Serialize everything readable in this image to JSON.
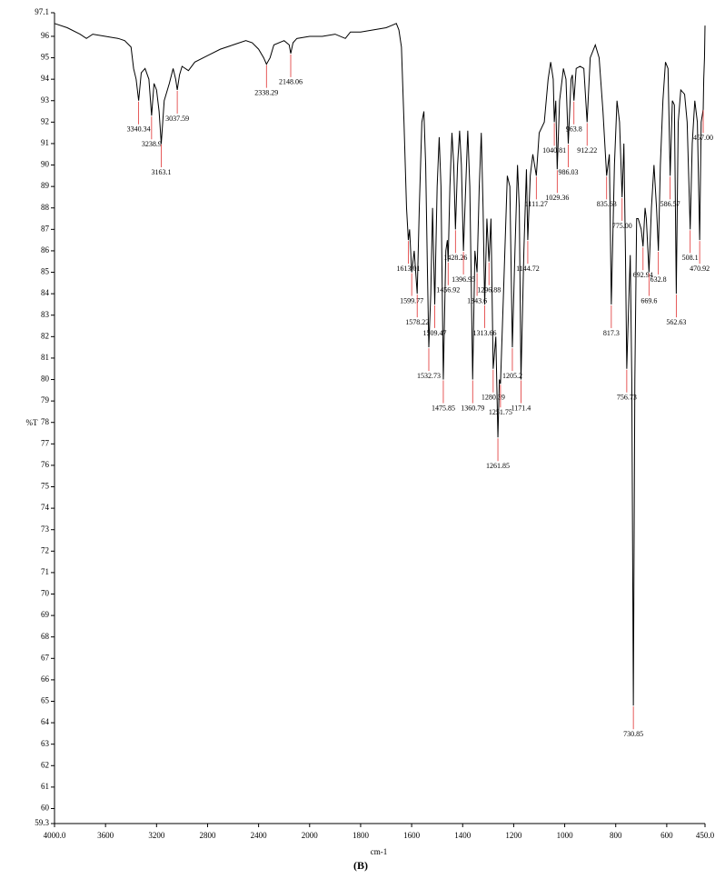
{
  "chart_data": {
    "type": "line",
    "y_label": "%T",
    "x_label": "cm-1",
    "caption": "(B)",
    "xlim": [
      4000,
      450
    ],
    "x_scale_break": 2000,
    "xticks": [
      {
        "value": 4000,
        "label": "4000.0"
      },
      3600,
      3200,
      2800,
      2400,
      2000,
      1800,
      1600,
      1400,
      1200,
      1000,
      800,
      600,
      {
        "value": 450,
        "label": "450.0"
      }
    ],
    "ylim": [
      59.3,
      97.1
    ],
    "yticks": [
      59.3,
      60,
      61,
      62,
      63,
      64,
      65,
      66,
      67,
      68,
      69,
      70,
      71,
      72,
      73,
      74,
      75,
      76,
      77,
      78,
      79,
      80,
      81,
      82,
      83,
      84,
      85,
      86,
      87,
      88,
      89,
      90,
      91,
      92,
      93,
      94,
      95,
      96,
      97.1
    ],
    "series": [
      {
        "color": "#000000",
        "x": [
          4000,
          3900,
          3800,
          3750,
          3700,
          3600,
          3500,
          3450,
          3400,
          3380,
          3360,
          3340.34,
          3320,
          3290,
          3260,
          3238.9,
          3220,
          3200,
          3180,
          3163.1,
          3140,
          3100,
          3070,
          3050,
          3037.59,
          3020,
          3000,
          2950,
          2900,
          2800,
          2700,
          2600,
          2500,
          2450,
          2400,
          2360,
          2338.29,
          2310,
          2280,
          2200,
          2160,
          2148.06,
          2130,
          2100,
          2000,
          1950,
          1900,
          1860,
          1840,
          1800,
          1750,
          1700,
          1680,
          1660,
          1650,
          1640,
          1630,
          1620,
          1613.01,
          1608,
          1599.77,
          1590,
          1578.22,
          1570,
          1560,
          1552,
          1545,
          1538,
          1532.73,
          1525,
          1518,
          1509.47,
          1500,
          1492,
          1485,
          1475.85,
          1466,
          1460,
          1456.92,
          1450,
          1442,
          1435,
          1428.26,
          1420,
          1412,
          1405,
          1396.95,
          1388,
          1380,
          1372,
          1360.79,
          1352,
          1343.6,
          1335,
          1327,
          1320,
          1313.66,
          1305,
          1296.88,
          1289,
          1280.39,
          1270,
          1261.85,
          1256,
          1251.75,
          1240,
          1225,
          1215,
          1205.2,
          1195,
          1185,
          1178,
          1171.4,
          1160,
          1150,
          1144.72,
          1135,
          1125,
          1111.27,
          1100,
          1080,
          1065,
          1055,
          1045,
          1040.81,
          1035,
          1029.36,
          1020,
          1005,
          995,
          986.03,
          975,
          970,
          963.8,
          955,
          940,
          925,
          912.22,
          900,
          880,
          865,
          850,
          835.63,
          825,
          817.3,
          805,
          795,
          785,
          775,
          768,
          762,
          756.73,
          748,
          743,
          737,
          730.85,
          725,
          718,
          712,
          700,
          692.94,
          685,
          680,
          669.6,
          660,
          650,
          640,
          632.8,
          625,
          615,
          605,
          595,
          586.57,
          578,
          570,
          562.63,
          555,
          545,
          530,
          520,
          508.1,
          500,
          490,
          480,
          470.92,
          465,
          457,
          455,
          452,
          450
        ],
        "values": [
          96.6,
          96.4,
          96.1,
          95.9,
          96.1,
          96.0,
          95.9,
          95.8,
          95.5,
          94.5,
          94.0,
          93.0,
          94.3,
          94.5,
          94.0,
          92.3,
          93.8,
          93.5,
          92.5,
          91.0,
          93.0,
          93.8,
          94.5,
          94.0,
          93.5,
          94.2,
          94.6,
          94.4,
          94.8,
          95.1,
          95.4,
          95.6,
          95.8,
          95.7,
          95.4,
          95.0,
          94.7,
          95.0,
          95.6,
          95.8,
          95.6,
          95.2,
          95.7,
          95.9,
          96.0,
          96.0,
          96.1,
          95.9,
          96.2,
          96.2,
          96.3,
          96.4,
          96.5,
          96.6,
          96.3,
          95.5,
          92,
          88,
          86.5,
          87.0,
          85.0,
          86,
          84.0,
          88,
          92.0,
          92.5,
          90,
          85,
          81.5,
          84,
          88,
          83.5,
          89,
          91.3,
          89,
          80.0,
          86,
          86.5,
          85.5,
          89,
          91.5,
          90,
          87.0,
          90,
          91.6,
          90,
          86.0,
          89,
          91.6,
          89,
          80.0,
          86,
          85.0,
          89,
          91.5,
          88,
          83.5,
          87.5,
          85.5,
          87.5,
          80.5,
          82,
          77.3,
          80,
          79.8,
          84,
          89.5,
          89.0,
          81.5,
          86,
          90.0,
          88,
          80.0,
          86,
          89.8,
          86.5,
          89.5,
          90.5,
          89.5,
          91.5,
          92.0,
          94.0,
          94.8,
          94.0,
          92.0,
          93,
          89.8,
          93,
          94.5,
          94,
          91.0,
          94,
          94.2,
          93.0,
          94.5,
          94.6,
          94.5,
          92.0,
          95.0,
          95.6,
          95.0,
          92.5,
          89.5,
          90.5,
          83.5,
          90,
          93.0,
          92,
          88.5,
          91,
          86,
          80.5,
          84,
          85.8,
          80,
          64.8,
          80,
          87.5,
          87.5,
          87.0,
          86.2,
          88.0,
          87.5,
          85.0,
          88,
          90,
          88,
          86.0,
          90,
          93,
          94.8,
          94.5,
          89.5,
          93,
          92.8,
          84.0,
          92,
          93.5,
          93.3,
          92,
          87.0,
          91,
          93,
          92,
          86.5,
          92,
          92.6,
          94,
          95,
          96.5
        ]
      }
    ],
    "annotations": [
      {
        "x": 3340.34,
        "y": 93.0
      },
      {
        "x": 3238.9,
        "y": 92.3
      },
      {
        "x": 3163.1,
        "y": 91.0
      },
      {
        "x": 3037.59,
        "y": 93.5
      },
      {
        "x": 2338.29,
        "y": 94.7
      },
      {
        "x": 2148.06,
        "y": 95.2
      },
      {
        "x": 1613.01,
        "y": 86.5
      },
      {
        "x": 1599.77,
        "y": 85.0
      },
      {
        "x": 1578.22,
        "y": 84.0
      },
      {
        "x": 1532.73,
        "y": 81.5
      },
      {
        "x": 1509.47,
        "y": 83.5
      },
      {
        "x": 1475.85,
        "y": 80.0
      },
      {
        "x": 1456.92,
        "y": 85.5
      },
      {
        "x": 1428.26,
        "y": 87.0
      },
      {
        "x": 1396.95,
        "y": 86.0
      },
      {
        "x": 1360.79,
        "y": 80.0
      },
      {
        "x": 1343.6,
        "y": 85.0
      },
      {
        "x": 1313.66,
        "y": 83.5
      },
      {
        "x": 1296.88,
        "y": 85.5
      },
      {
        "x": 1280.39,
        "y": 80.5
      },
      {
        "x": 1261.85,
        "y": 77.3
      },
      {
        "x": 1251.75,
        "y": 79.8
      },
      {
        "x": 1205.2,
        "y": 81.5
      },
      {
        "x": 1171.4,
        "y": 80.0
      },
      {
        "x": 1144.72,
        "y": 86.5
      },
      {
        "x": 1111.27,
        "y": 89.5
      },
      {
        "x": 1040.81,
        "y": 92.0
      },
      {
        "x": 1029.36,
        "y": 89.8
      },
      {
        "x": 986.03,
        "y": 91.0
      },
      {
        "x": 963.8,
        "y": 93.0
      },
      {
        "x": 912.22,
        "y": 92.0
      },
      {
        "x": 835.63,
        "y": 89.5
      },
      {
        "x": 817.3,
        "y": 83.5
      },
      {
        "x": {
          "value": 775,
          "label": "775.00"
        },
        "y": 88.5
      },
      {
        "x": 756.73,
        "y": 80.5
      },
      {
        "x": 730.85,
        "y": 64.8
      },
      {
        "x": 692.94,
        "y": 86.2
      },
      {
        "x": 669.6,
        "y": 85.0
      },
      {
        "x": 632.8,
        "y": 86.0
      },
      {
        "x": 586.57,
        "y": 89.5
      },
      {
        "x": 562.63,
        "y": 84.0
      },
      {
        "x": 508.1,
        "y": 87.0
      },
      {
        "x": 470.92,
        "y": 86.5
      },
      {
        "x": {
          "value": 457,
          "label": "457.00"
        },
        "y": 92.6
      }
    ]
  }
}
